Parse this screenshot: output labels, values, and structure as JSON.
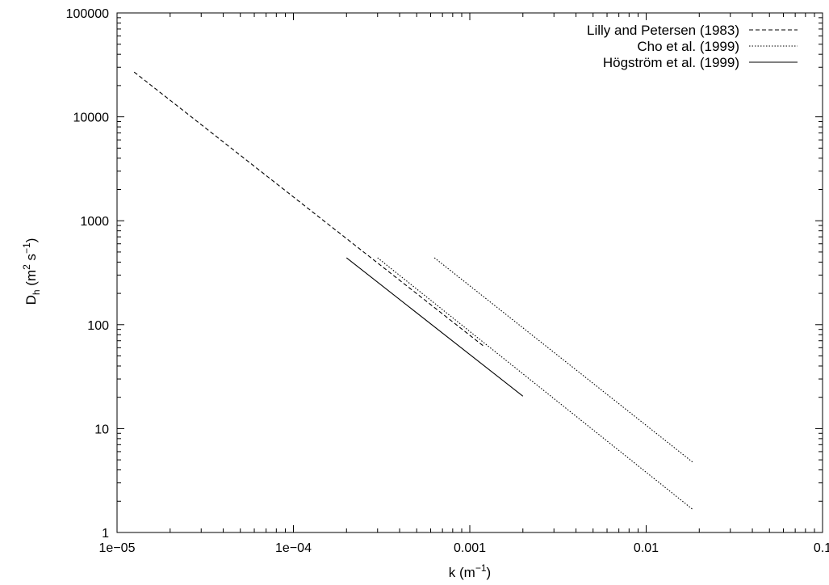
{
  "chart_data": {
    "type": "line",
    "x_scale": "log",
    "y_scale": "log",
    "xlim": [
      1e-05,
      0.1
    ],
    "ylim": [
      1,
      100000
    ],
    "x_ticks": [
      {
        "value": 1e-05,
        "label": "1e−05"
      },
      {
        "value": 0.0001,
        "label": "1e−04"
      },
      {
        "value": 0.001,
        "label": "0.001"
      },
      {
        "value": 0.01,
        "label": "0.01"
      },
      {
        "value": 0.1,
        "label": "0.1"
      }
    ],
    "y_ticks": [
      {
        "value": 1,
        "label": "1"
      },
      {
        "value": 10,
        "label": "10"
      },
      {
        "value": 100,
        "label": "100"
      },
      {
        "value": 1000,
        "label": "1000"
      },
      {
        "value": 10000,
        "label": "10000"
      },
      {
        "value": 100000,
        "label": "100000"
      }
    ],
    "xlabel": {
      "base": "k (m",
      "sup": "−1",
      "end": ")"
    },
    "ylabel": {
      "d": "D",
      "sub": "h",
      "unit_open": " (m",
      "sup1": "2",
      "mid": " s",
      "sup2": "−1",
      "end": ")"
    },
    "legend_position": "top-right",
    "grid": false,
    "series": [
      {
        "name": "Lilly and Petersen (1983)",
        "style": "dashed",
        "segments": [
          [
            [
              1.25e-05,
              27000
            ],
            [
              0.0012,
              62
            ]
          ]
        ]
      },
      {
        "name": "Cho et al. (1999)",
        "style": "dotted",
        "segments": [
          [
            [
              0.0003,
              440
            ],
            [
              0.0185,
              1.65
            ]
          ],
          [
            [
              0.00063,
              440
            ],
            [
              0.0185,
              4.7
            ]
          ]
        ]
      },
      {
        "name": "Högström et al. (1999)",
        "style": "solid",
        "segments": [
          [
            [
              0.0002,
              440
            ],
            [
              0.002,
              20.5
            ]
          ]
        ]
      }
    ]
  }
}
